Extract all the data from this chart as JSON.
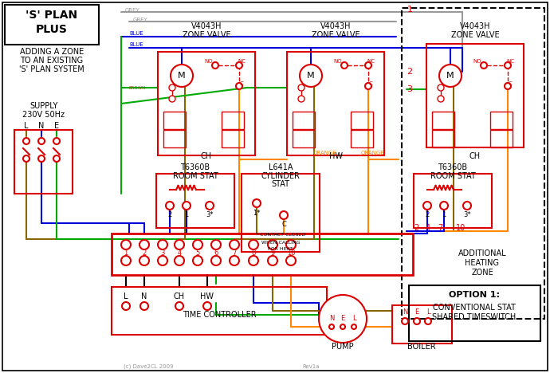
{
  "bg_color": "#ffffff",
  "fig_width": 6.9,
  "fig_height": 4.68,
  "colors": {
    "red": "#dd0000",
    "blue": "#0000dd",
    "green": "#00aa00",
    "orange": "#ff8800",
    "grey": "#999999",
    "brown": "#886600",
    "black": "#000000",
    "white": "#ffffff",
    "dkgrey": "#555555"
  },
  "title_line1": "'S' PLAN",
  "title_line2": "PLUS",
  "sub1": "ADDING A ZONE",
  "sub2": "TO AN EXISTING",
  "sub3": "'S' PLAN SYSTEM",
  "supply_line1": "SUPPLY",
  "supply_line2": "230V 50Hz",
  "option_title": "OPTION 1:",
  "option_line1": "CONVENTIONAL STAT",
  "option_line2": "SHARED TIMESWITCH",
  "additional_line1": "ADDITIONAL",
  "additional_line2": "HEATING",
  "additional_line3": "ZONE",
  "copyright": "(c) Dave2CL 2009",
  "rev": "Rev1a"
}
